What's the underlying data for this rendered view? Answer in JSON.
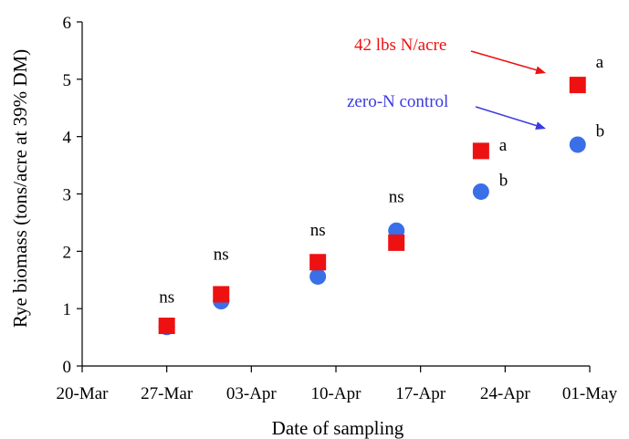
{
  "chart_data": {
    "type": "scatter",
    "title": "",
    "xlabel": "Date of sampling",
    "ylabel": "Rye biomass  (tons/acre at 39% DM)",
    "x_ticks": [
      "20-Mar",
      "27-Mar",
      "03-Apr",
      "10-Apr",
      "17-Apr",
      "24-Apr",
      "01-May"
    ],
    "x_tick_days": [
      0,
      7,
      14,
      21,
      28,
      35,
      42
    ],
    "xlim": [
      0,
      42
    ],
    "y_ticks": [
      "0",
      "1",
      "2",
      "3",
      "4",
      "5",
      "6"
    ],
    "ylim": [
      0,
      6
    ],
    "grid": false,
    "series": [
      {
        "name": "zero-N control",
        "marker": "circle",
        "color": "#3a6fe8",
        "x": [
          7,
          11.5,
          19.5,
          26,
          33,
          41
        ],
        "y": [
          0.68,
          1.13,
          1.56,
          2.36,
          3.04,
          3.86
        ]
      },
      {
        "name": "42 lbs N/acre",
        "marker": "square",
        "color": "#ee1111",
        "x": [
          7,
          11.5,
          19.5,
          26,
          33,
          41
        ],
        "y": [
          0.7,
          1.25,
          1.81,
          2.15,
          3.75,
          4.9
        ]
      }
    ],
    "significance_labels": [
      {
        "text": "ns",
        "x": 7,
        "y": 1.2
      },
      {
        "text": "ns",
        "x": 11.5,
        "y": 1.95
      },
      {
        "text": "ns",
        "x": 19.5,
        "y": 2.37
      },
      {
        "text": "ns",
        "x": 26,
        "y": 2.95
      },
      {
        "text": "a",
        "x": 34.5,
        "y": 3.85
      },
      {
        "text": "b",
        "x": 34.5,
        "y": 3.24
      },
      {
        "text": "a",
        "x": 42.5,
        "y": 5.3
      },
      {
        "text": "b",
        "x": 42.5,
        "y": 4.1
      }
    ],
    "annotations": [
      {
        "text": "42 lbs N/acre",
        "color": "#ee1111",
        "series": "42 lbs N/acre"
      },
      {
        "text": "zero-N control",
        "color": "#3a3ae0",
        "series": "zero-N control"
      }
    ]
  }
}
